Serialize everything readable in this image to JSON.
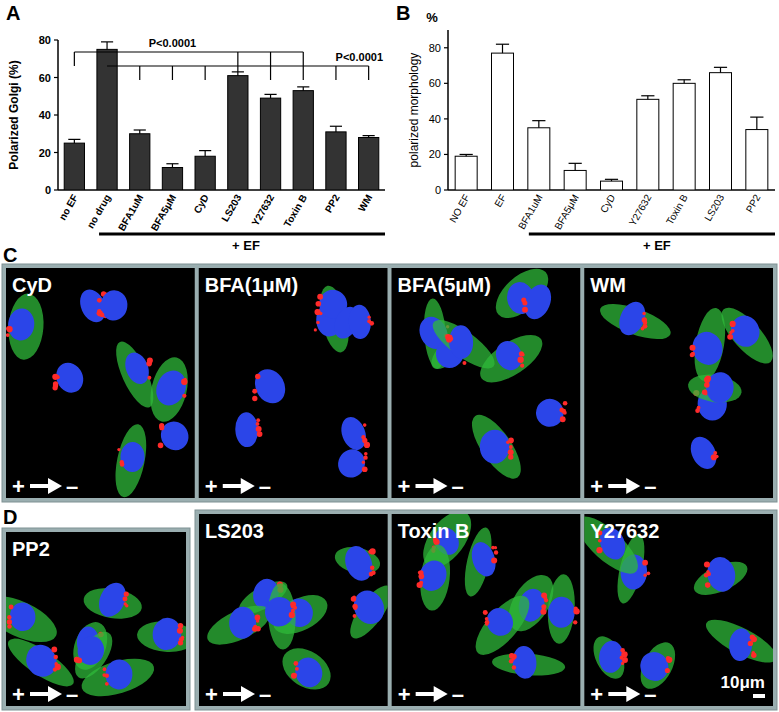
{
  "chart_data": [
    {
      "type": "bar",
      "title": "A",
      "y_label": "Polarized Golgi (%)",
      "categories": [
        "no EF",
        "no drug",
        "BFA1uM",
        "BFA5μM",
        "CyD",
        "LS203",
        "Y27632",
        "Toxin B",
        "PP2",
        "WM"
      ],
      "values": [
        25,
        75,
        30,
        12,
        18,
        61,
        49,
        53,
        31,
        28
      ],
      "errors": [
        2,
        4,
        2,
        2,
        3,
        2,
        2,
        2,
        3,
        1
      ],
      "color": "#333333",
      "ylim": [
        0,
        80
      ],
      "yticks": [
        0,
        20,
        40,
        60,
        80
      ],
      "grid": false,
      "annotations": [
        "P<0.0001",
        "P<0.0001",
        "+ EF"
      ]
    },
    {
      "type": "bar",
      "title": "B",
      "y_label": "polarized morphology",
      "categories": [
        "NO EF",
        "EF",
        "BFA1uM",
        "BFA5μM",
        "CyD",
        "Y27632",
        "Toxin B",
        "LS203",
        "PP2"
      ],
      "values": [
        19,
        77,
        35,
        11,
        5,
        51,
        60,
        66,
        34
      ],
      "errors": [
        1,
        5,
        4,
        4,
        1,
        2,
        2,
        3,
        7
      ],
      "color": "#ffffff",
      "ylim": [
        0,
        90
      ],
      "yticks": [
        0,
        20,
        40,
        60,
        80
      ],
      "grid": false,
      "annotations": [
        "%",
        "+ EF"
      ]
    }
  ],
  "image_panels": {
    "C": {
      "label": "C",
      "panels": [
        "CyD",
        "BFA(1μM)",
        "BFA(5μM)",
        "WM"
      ]
    },
    "D": {
      "label": "D",
      "panels": [
        "PP2",
        "LS203",
        "Toxin B",
        "Y27632"
      ],
      "scale_bar": "10μm"
    },
    "polarity": [
      "+",
      "–"
    ]
  }
}
